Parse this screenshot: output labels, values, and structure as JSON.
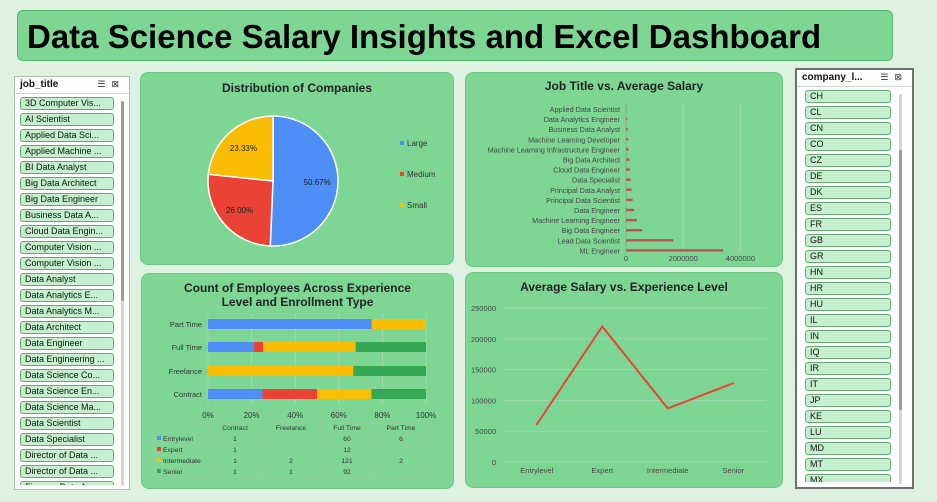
{
  "title": "Data Science Salary Insights and Excel Dashboard",
  "slicer_left": {
    "title": "job_title",
    "items": [
      "3D Computer Vis...",
      "AI Scientist",
      "Applied Data Sci...",
      "Applied Machine ...",
      "BI Data Analyst",
      "Big Data Architect",
      "Big Data Engineer",
      "Business Data A...",
      "Cloud Data Engin...",
      "Computer Vision ...",
      "Computer Vision ...",
      "Data Analyst",
      "Data Analytics E...",
      "Data Analytics M...",
      "Data Architect",
      "Data Engineer",
      "Data Engineering ...",
      "Data Science Co...",
      "Data Science En...",
      "Data Science Ma...",
      "Data Scientist",
      "Data Specialist",
      "Director of Data ...",
      "Director of Data ...",
      "Finance Data A..."
    ]
  },
  "slicer_right": {
    "title": "company_l...",
    "items": [
      "CH",
      "CL",
      "CN",
      "CO",
      "CZ",
      "DE",
      "DK",
      "ES",
      "FR",
      "GB",
      "GR",
      "HN",
      "HR",
      "HU",
      "IL",
      "IN",
      "IQ",
      "IR",
      "IT",
      "JP",
      "KE",
      "LU",
      "MD",
      "MT",
      "MX"
    ]
  },
  "slicer_icons": {
    "multi_select": "multi-select-icon",
    "clear_filter": "clear-filter-icon"
  },
  "colors": {
    "blue": "#4d8ef7",
    "red": "#ea4335",
    "yellow": "#fbbc04",
    "green": "#34a853",
    "panel": "#7ed694"
  },
  "charts": [
    {
      "id": "pie",
      "type": "pie",
      "title": "Distribution of Companies",
      "slices": [
        {
          "label": "Large",
          "value": 50.67,
          "display": "50.67%",
          "color": "#4d8ef7"
        },
        {
          "label": "Medium",
          "value": 26.0,
          "display": "26.00%",
          "color": "#ea4335"
        },
        {
          "label": "Small",
          "value": 23.33,
          "display": "23.33%",
          "color": "#fbbc04"
        }
      ],
      "legend": "right"
    },
    {
      "id": "jobs",
      "type": "bar",
      "orientation": "horizontal",
      "title": "Job Title vs. Average Salary",
      "categories": [
        "Applied Data Scientist",
        "Data Analytics Engineer",
        "Business Data Analyst",
        "Machine Learning Developer",
        "Machine Learning Infrastructure Engineer",
        "Big Data Architect",
        "Cloud Data Engineer",
        "Data Specialist",
        "Principal Data Analyst",
        "Principal Data Scientist",
        "Data Engineer",
        "Machine Learning Engineer",
        "Big Data Engineer",
        "Lead Data Scientist",
        "ML Engineer"
      ],
      "values": [
        20000,
        40000,
        60000,
        80000,
        100000,
        120000,
        140000,
        160000,
        190000,
        230000,
        280000,
        380000,
        560000,
        1650000,
        3400000
      ],
      "xlim": [
        0,
        5000000
      ],
      "xticks": [
        0,
        2000000,
        4000000
      ],
      "xtick_labels": [
        "0",
        "2000000",
        "4000000"
      ]
    },
    {
      "id": "stack",
      "type": "bar",
      "orientation": "horizontal-stacked-100",
      "title_line1": "Count of Employees Across Experience",
      "title_line2": "Level and Enrollment Type",
      "categories": [
        "Part Time",
        "Full Time",
        "Freelance",
        "Contract"
      ],
      "series": [
        {
          "name": "Entrylevel",
          "color": "#4d8ef7",
          "values": [
            6,
            60,
            0,
            1
          ]
        },
        {
          "name": "Expert",
          "color": "#ea4335",
          "values": [
            0,
            12,
            0,
            1
          ]
        },
        {
          "name": "Intermediate",
          "color": "#fbbc04",
          "values": [
            2,
            121,
            2,
            1
          ]
        },
        {
          "name": "Senior",
          "color": "#34a853",
          "values": [
            0,
            92,
            1,
            1
          ]
        }
      ],
      "xtick_labels": [
        "0%",
        "20%",
        "40%",
        "60%",
        "80%",
        "100%"
      ],
      "table": {
        "headers": [
          "Contract",
          "Freelance",
          "Full Time",
          "Part Time"
        ],
        "rows": [
          {
            "name": "Entrylevel",
            "cells": [
              "1",
              "",
              "60",
              "6"
            ]
          },
          {
            "name": "Expert",
            "cells": [
              "1",
              "",
              "12",
              ""
            ]
          },
          {
            "name": "Intermediate",
            "cells": [
              "1",
              "2",
              "121",
              "2"
            ]
          },
          {
            "name": "Senior",
            "cells": [
              "1",
              "1",
              "92",
              ""
            ]
          }
        ]
      }
    },
    {
      "id": "line",
      "type": "line",
      "title": "Average Salary vs. Experience Level",
      "categories": [
        "Entrylevel",
        "Expert",
        "Intermediate",
        "Senior"
      ],
      "values": [
        61000,
        220000,
        87000,
        128000
      ],
      "ylim": [
        0,
        250000
      ],
      "yticks": [
        0,
        50000,
        100000,
        150000,
        200000,
        250000
      ],
      "ytick_labels": [
        "0",
        "50000",
        "100000",
        "150000",
        "200000",
        "250000"
      ],
      "color": "#ea4335"
    }
  ]
}
